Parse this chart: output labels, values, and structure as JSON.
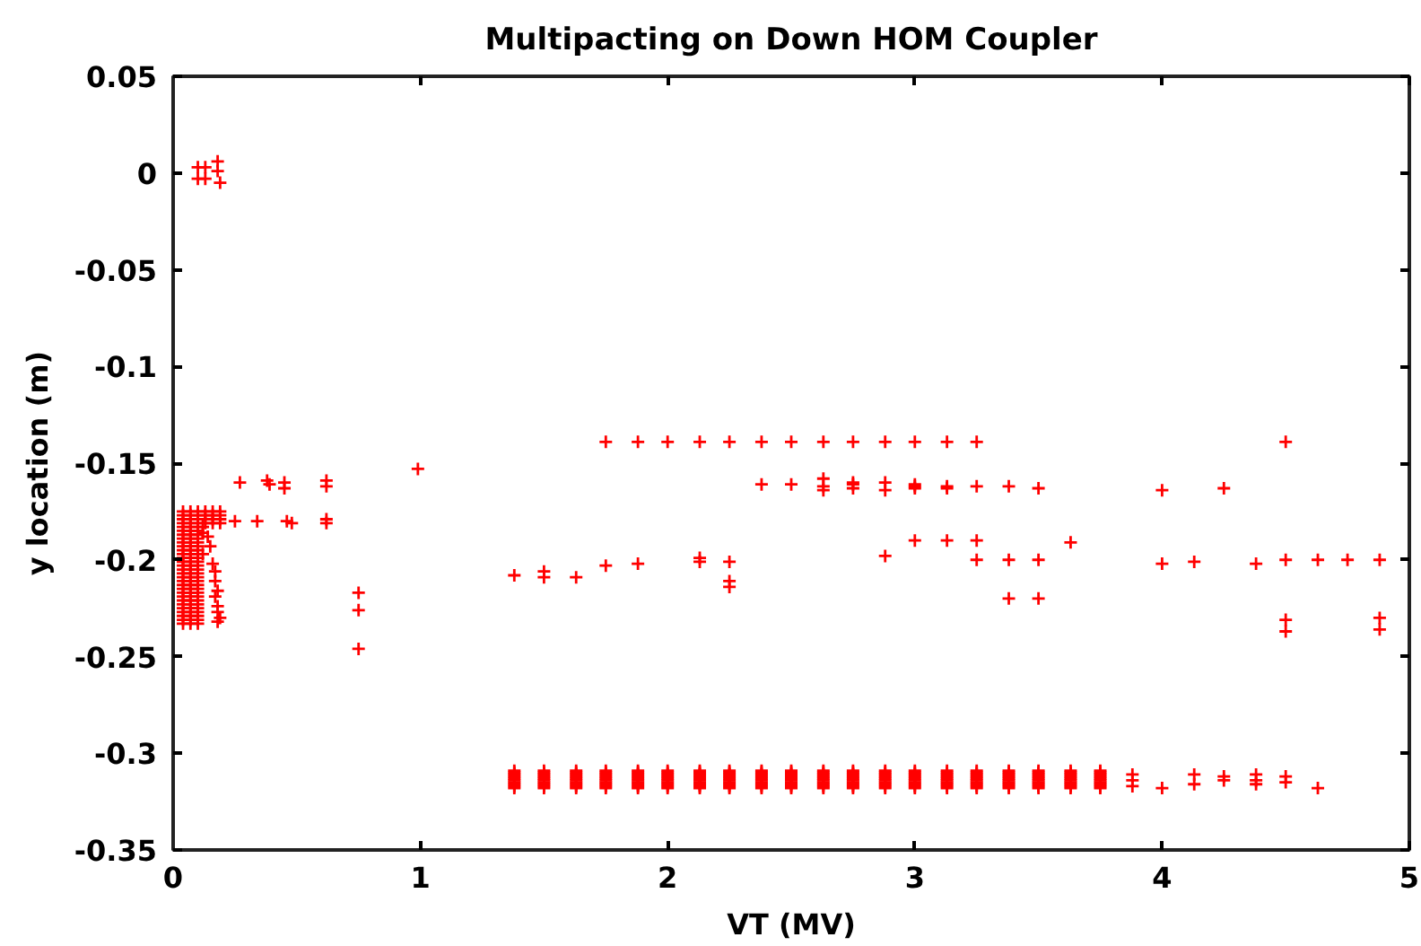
{
  "chart_data": {
    "type": "scatter",
    "title": "Multipacting on Down HOM Coupler",
    "xlabel": "VT (MV)",
    "ylabel": "y location (m)",
    "color": "#ff0000",
    "marker": "cross",
    "grid": false,
    "xlim": [
      0,
      5
    ],
    "ylim": [
      -0.35,
      0.05
    ],
    "xticks": [
      0,
      1,
      2,
      3,
      4,
      5
    ],
    "yticks": [
      -0.35,
      -0.3,
      -0.25,
      -0.2,
      -0.15,
      -0.1,
      -0.05,
      0,
      0.05
    ],
    "x": [
      0.1,
      0.1,
      0.13,
      0.13,
      0.18,
      0.18,
      0.19,
      0.04,
      0.07,
      0.1,
      0.04,
      0.07,
      0.1,
      0.04,
      0.07,
      0.04,
      0.07,
      0.1,
      0.04,
      0.07,
      0.1,
      0.04,
      0.07,
      0.1,
      0.04,
      0.07,
      0.1,
      0.04,
      0.07,
      0.1,
      0.04,
      0.07,
      0.1,
      0.04,
      0.07,
      0.1,
      0.04,
      0.07,
      0.1,
      0.04,
      0.07,
      0.1,
      0.04,
      0.07,
      0.1,
      0.04,
      0.07,
      0.1,
      0.04,
      0.07,
      0.1,
      0.04,
      0.07,
      0.1,
      0.04,
      0.07,
      0.1,
      0.04,
      0.07,
      0.1,
      0.04,
      0.07,
      0.1,
      0.04,
      0.07,
      0.1,
      0.04,
      0.07,
      0.1,
      0.04,
      0.07,
      0.1,
      0.04,
      0.07,
      0.1,
      0.04,
      0.07,
      0.1,
      0.04,
      0.07,
      0.1,
      0.04,
      0.07,
      0.1,
      0.04,
      0.07,
      0.1,
      0.04,
      0.07,
      0.1,
      0.04,
      0.07,
      0.1,
      0.04,
      0.07,
      0.1,
      0.13,
      0.16,
      0.19,
      0.13,
      0.16,
      0.19,
      0.13,
      0.16,
      0.19,
      0.13,
      0.16,
      0.19,
      0.12,
      0.12,
      0.12,
      0.14,
      0.15,
      0.16,
      0.17,
      0.17,
      0.18,
      0.17,
      0.18,
      0.18,
      0.19,
      0.18,
      0.25,
      0.27,
      0.34,
      0.38,
      0.39,
      0.45,
      0.45,
      0.46,
      0.48,
      0.62,
      0.62,
      0.62,
      0.62,
      0.75,
      0.75,
      0.75,
      0.99,
      1.38,
      1.5,
      1.5,
      1.63,
      1.75,
      1.75,
      1.88,
      1.88,
      2,
      2.13,
      2.13,
      2.13,
      2.25,
      2.25,
      2.25,
      2.25,
      2.38,
      2.38,
      2.5,
      2.5,
      2.63,
      2.63,
      2.63,
      2.63,
      2.75,
      2.75,
      2.75,
      2.75,
      2.88,
      2.88,
      2.88,
      2.88,
      3,
      3,
      3,
      3,
      3,
      3.13,
      3.13,
      3.13,
      3.13,
      3.25,
      3.25,
      3.25,
      3.25,
      3.38,
      3.38,
      3.38,
      3.5,
      3.5,
      3.5,
      3.63,
      4,
      4,
      4.13,
      4.25,
      4.38,
      4.5,
      4.5,
      4.5,
      4.5,
      4.63,
      4.75,
      4.88,
      4.88,
      4.88,
      1.38,
      1.38,
      1.38,
      1.38,
      1.38,
      1.38,
      1.38,
      1.38,
      1.38,
      1.38,
      1.5,
      1.5,
      1.5,
      1.5,
      1.5,
      1.5,
      1.5,
      1.5,
      1.5,
      1.5,
      1.63,
      1.63,
      1.63,
      1.63,
      1.63,
      1.63,
      1.63,
      1.63,
      1.63,
      1.63,
      1.75,
      1.75,
      1.75,
      1.75,
      1.75,
      1.75,
      1.75,
      1.75,
      1.75,
      1.75,
      1.88,
      1.88,
      1.88,
      1.88,
      1.88,
      1.88,
      1.88,
      1.88,
      1.88,
      1.88,
      2,
      2,
      2,
      2,
      2,
      2,
      2,
      2,
      2,
      2,
      2.13,
      2.13,
      2.13,
      2.13,
      2.13,
      2.13,
      2.13,
      2.13,
      2.13,
      2.13,
      2.25,
      2.25,
      2.25,
      2.25,
      2.25,
      2.25,
      2.25,
      2.25,
      2.25,
      2.25,
      2.38,
      2.38,
      2.38,
      2.38,
      2.38,
      2.38,
      2.38,
      2.38,
      2.38,
      2.38,
      2.5,
      2.5,
      2.5,
      2.5,
      2.5,
      2.5,
      2.5,
      2.5,
      2.5,
      2.5,
      2.63,
      2.63,
      2.63,
      2.63,
      2.63,
      2.63,
      2.63,
      2.63,
      2.63,
      2.63,
      2.75,
      2.75,
      2.75,
      2.75,
      2.75,
      2.75,
      2.75,
      2.75,
      2.75,
      2.75,
      2.88,
      2.88,
      2.88,
      2.88,
      2.88,
      2.88,
      2.88,
      2.88,
      2.88,
      2.88,
      3,
      3,
      3,
      3,
      3,
      3,
      3,
      3,
      3,
      3,
      3.13,
      3.13,
      3.13,
      3.13,
      3.13,
      3.13,
      3.13,
      3.13,
      3.13,
      3.13,
      3.25,
      3.25,
      3.25,
      3.25,
      3.25,
      3.25,
      3.25,
      3.25,
      3.25,
      3.25,
      3.38,
      3.38,
      3.38,
      3.38,
      3.38,
      3.38,
      3.38,
      3.38,
      3.38,
      3.38,
      3.5,
      3.5,
      3.5,
      3.5,
      3.5,
      3.5,
      3.5,
      3.5,
      3.5,
      3.5,
      3.63,
      3.63,
      3.63,
      3.63,
      3.63,
      3.63,
      3.63,
      3.63,
      3.63,
      3.63,
      3.75,
      3.75,
      3.75,
      3.75,
      3.75,
      3.75,
      3.75,
      3.75,
      3.75,
      3.75,
      3.88,
      3.88,
      3.88,
      4,
      4.13,
      4.13,
      4.25,
      4.25,
      4.38,
      4.38,
      4.38,
      4.5,
      4.5,
      4.63
    ],
    "values": [
      0.003,
      -0.003,
      0.003,
      -0.003,
      0.006,
      0.001,
      -0.005,
      -0.175,
      -0.175,
      -0.175,
      -0.177,
      -0.177,
      -0.177,
      -0.179,
      -0.179,
      -0.181,
      -0.181,
      -0.181,
      -0.183,
      -0.183,
      -0.183,
      -0.185,
      -0.185,
      -0.185,
      -0.187,
      -0.187,
      -0.187,
      -0.189,
      -0.189,
      -0.189,
      -0.191,
      -0.191,
      -0.191,
      -0.193,
      -0.193,
      -0.193,
      -0.195,
      -0.195,
      -0.195,
      -0.197,
      -0.197,
      -0.197,
      -0.199,
      -0.199,
      -0.199,
      -0.201,
      -0.201,
      -0.201,
      -0.203,
      -0.203,
      -0.203,
      -0.205,
      -0.205,
      -0.205,
      -0.207,
      -0.207,
      -0.207,
      -0.209,
      -0.209,
      -0.209,
      -0.211,
      -0.211,
      -0.211,
      -0.213,
      -0.213,
      -0.213,
      -0.215,
      -0.215,
      -0.215,
      -0.217,
      -0.217,
      -0.217,
      -0.219,
      -0.219,
      -0.219,
      -0.221,
      -0.221,
      -0.221,
      -0.223,
      -0.223,
      -0.223,
      -0.225,
      -0.225,
      -0.225,
      -0.227,
      -0.227,
      -0.227,
      -0.229,
      -0.229,
      -0.229,
      -0.231,
      -0.231,
      -0.231,
      -0.233,
      -0.233,
      -0.233,
      -0.175,
      -0.175,
      -0.175,
      -0.177,
      -0.177,
      -0.177,
      -0.179,
      -0.179,
      -0.179,
      -0.181,
      -0.181,
      -0.181,
      -0.183,
      -0.186,
      -0.197,
      -0.188,
      -0.193,
      -0.202,
      -0.206,
      -0.211,
      -0.216,
      -0.219,
      -0.224,
      -0.227,
      -0.23,
      -0.232,
      -0.18,
      -0.16,
      -0.18,
      -0.159,
      -0.161,
      -0.16,
      -0.163,
      -0.18,
      -0.181,
      -0.159,
      -0.162,
      -0.179,
      -0.181,
      -0.217,
      -0.226,
      -0.246,
      -0.153,
      -0.208,
      -0.206,
      -0.209,
      -0.209,
      -0.139,
      -0.203,
      -0.139,
      -0.202,
      -0.139,
      -0.139,
      -0.199,
      -0.201,
      -0.139,
      -0.201,
      -0.211,
      -0.214,
      -0.139,
      -0.161,
      -0.139,
      -0.161,
      -0.139,
      -0.158,
      -0.162,
      -0.164,
      -0.139,
      -0.16,
      -0.161,
      -0.163,
      -0.139,
      -0.16,
      -0.164,
      -0.198,
      -0.139,
      -0.161,
      -0.162,
      -0.163,
      -0.19,
      -0.139,
      -0.162,
      -0.163,
      -0.19,
      -0.139,
      -0.162,
      -0.19,
      -0.2,
      -0.162,
      -0.2,
      -0.22,
      -0.163,
      -0.2,
      -0.22,
      -0.191,
      -0.164,
      -0.202,
      -0.201,
      -0.163,
      -0.202,
      -0.139,
      -0.2,
      -0.231,
      -0.237,
      -0.2,
      -0.2,
      -0.2,
      -0.23,
      -0.236,
      -0.309,
      -0.31,
      -0.311,
      -0.312,
      -0.313,
      -0.314,
      -0.315,
      -0.316,
      -0.317,
      -0.318,
      -0.309,
      -0.31,
      -0.311,
      -0.312,
      -0.313,
      -0.314,
      -0.315,
      -0.316,
      -0.317,
      -0.318,
      -0.309,
      -0.31,
      -0.311,
      -0.312,
      -0.313,
      -0.314,
      -0.315,
      -0.316,
      -0.317,
      -0.318,
      -0.309,
      -0.31,
      -0.311,
      -0.312,
      -0.313,
      -0.314,
      -0.315,
      -0.316,
      -0.317,
      -0.318,
      -0.309,
      -0.31,
      -0.311,
      -0.312,
      -0.313,
      -0.314,
      -0.315,
      -0.316,
      -0.317,
      -0.318,
      -0.309,
      -0.31,
      -0.311,
      -0.312,
      -0.313,
      -0.314,
      -0.315,
      -0.316,
      -0.317,
      -0.318,
      -0.309,
      -0.31,
      -0.311,
      -0.312,
      -0.313,
      -0.314,
      -0.315,
      -0.316,
      -0.317,
      -0.318,
      -0.309,
      -0.31,
      -0.311,
      -0.312,
      -0.313,
      -0.314,
      -0.315,
      -0.316,
      -0.317,
      -0.318,
      -0.309,
      -0.31,
      -0.311,
      -0.312,
      -0.313,
      -0.314,
      -0.315,
      -0.316,
      -0.317,
      -0.318,
      -0.309,
      -0.31,
      -0.311,
      -0.312,
      -0.313,
      -0.314,
      -0.315,
      -0.316,
      -0.317,
      -0.318,
      -0.309,
      -0.31,
      -0.311,
      -0.312,
      -0.313,
      -0.314,
      -0.315,
      -0.316,
      -0.317,
      -0.318,
      -0.309,
      -0.31,
      -0.311,
      -0.312,
      -0.313,
      -0.314,
      -0.315,
      -0.316,
      -0.317,
      -0.318,
      -0.309,
      -0.31,
      -0.311,
      -0.312,
      -0.313,
      -0.314,
      -0.315,
      -0.316,
      -0.317,
      -0.318,
      -0.309,
      -0.31,
      -0.311,
      -0.312,
      -0.313,
      -0.314,
      -0.315,
      -0.316,
      -0.317,
      -0.318,
      -0.309,
      -0.31,
      -0.311,
      -0.312,
      -0.313,
      -0.314,
      -0.315,
      -0.316,
      -0.317,
      -0.318,
      -0.309,
      -0.31,
      -0.311,
      -0.312,
      -0.313,
      -0.314,
      -0.315,
      -0.316,
      -0.317,
      -0.318,
      -0.309,
      -0.31,
      -0.311,
      -0.312,
      -0.313,
      -0.314,
      -0.315,
      -0.316,
      -0.317,
      -0.318,
      -0.309,
      -0.31,
      -0.311,
      -0.312,
      -0.313,
      -0.314,
      -0.315,
      -0.316,
      -0.317,
      -0.318,
      -0.309,
      -0.31,
      -0.311,
      -0.312,
      -0.313,
      -0.314,
      -0.315,
      -0.316,
      -0.317,
      -0.318,
      -0.309,
      -0.31,
      -0.311,
      -0.312,
      -0.313,
      -0.314,
      -0.315,
      -0.316,
      -0.317,
      -0.318,
      -0.311,
      -0.314,
      -0.317,
      -0.318,
      -0.311,
      -0.316,
      -0.312,
      -0.314,
      -0.311,
      -0.314,
      -0.316,
      -0.312,
      -0.315,
      -0.318
    ]
  }
}
